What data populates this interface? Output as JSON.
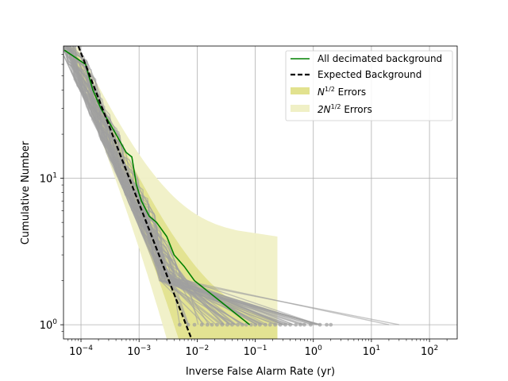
{
  "chart_data": {
    "type": "line",
    "xlabel": "Inverse False Alarm Rate (yr)",
    "ylabel": "Cumulative Number",
    "x_scale": "log",
    "y_scale": "log",
    "xlim": [
      5e-05,
      300
    ],
    "ylim": [
      0.8,
      80
    ],
    "x_ticks": [
      {
        "value": 0.0001,
        "base": "10",
        "exp": "−4"
      },
      {
        "value": 0.001,
        "base": "10",
        "exp": "−3"
      },
      {
        "value": 0.01,
        "base": "10",
        "exp": "−2"
      },
      {
        "value": 0.1,
        "base": "10",
        "exp": "−1"
      },
      {
        "value": 1,
        "base": "10",
        "exp": "0"
      },
      {
        "value": 10,
        "base": "10",
        "exp": "1"
      },
      {
        "value": 100,
        "base": "10",
        "exp": "2"
      }
    ],
    "y_ticks": [
      {
        "value": 1,
        "base": "10",
        "exp": "0"
      },
      {
        "value": 10,
        "base": "10",
        "exp": "1"
      }
    ],
    "grid": true,
    "legend_position": "top-right",
    "legend": [
      {
        "label": "All decimated background",
        "kind": "line",
        "color": "#008000"
      },
      {
        "label": "Expected Background",
        "kind": "dashed",
        "color": "#000000"
      },
      {
        "label_main": "N",
        "label_sup": "1/2",
        "label_rest": " Errors",
        "kind": "patch",
        "color": "#e2e28f"
      },
      {
        "label_main": "2N",
        "label_sup": "1/2",
        "label_rest": " Errors",
        "kind": "patch",
        "color": "#f0f0c6"
      }
    ],
    "series": [
      {
        "name": "All decimated background",
        "color": "#008000",
        "points": [
          [
            5.2e-05,
            75
          ],
          [
            0.00012,
            60
          ],
          [
            0.00016,
            40
          ],
          [
            0.00022,
            30
          ],
          [
            0.00035,
            22
          ],
          [
            0.0006,
            15
          ],
          [
            0.00075,
            14
          ],
          [
            0.0008,
            12
          ],
          [
            0.0009,
            9
          ],
          [
            0.0011,
            7
          ],
          [
            0.0015,
            5.5
          ],
          [
            0.002,
            5
          ],
          [
            0.003,
            4
          ],
          [
            0.004,
            3
          ],
          [
            0.006,
            2.5
          ],
          [
            0.009,
            2
          ],
          [
            0.08,
            1
          ]
        ]
      },
      {
        "name": "Expected Background",
        "color": "#000000",
        "points": [
          [
            9e-05,
            80
          ],
          [
            0.00076,
            8.9
          ],
          [
            0.008,
            0.8
          ]
        ]
      }
    ],
    "error_band_n": {
      "n_from": 0.8,
      "n_to": 80
    },
    "background_curves": {
      "color": "#a0a0a0",
      "count": 60,
      "seed": 7,
      "x_end_min": 0.005,
      "x_end_max": 2.0,
      "outliers_x_end": [
        0.3,
        1.0,
        20.0,
        30.0
      ],
      "marker_points_x": [
        0.005,
        0.007,
        0.009,
        0.012,
        0.015,
        0.018,
        0.022,
        0.027,
        0.033,
        0.04,
        0.05,
        0.06,
        0.07,
        0.085,
        0.1,
        0.12,
        0.15,
        0.18,
        0.22,
        0.27,
        0.33,
        0.4,
        0.5,
        0.6,
        0.7,
        0.9,
        1.3,
        1.7,
        2.0
      ]
    }
  }
}
